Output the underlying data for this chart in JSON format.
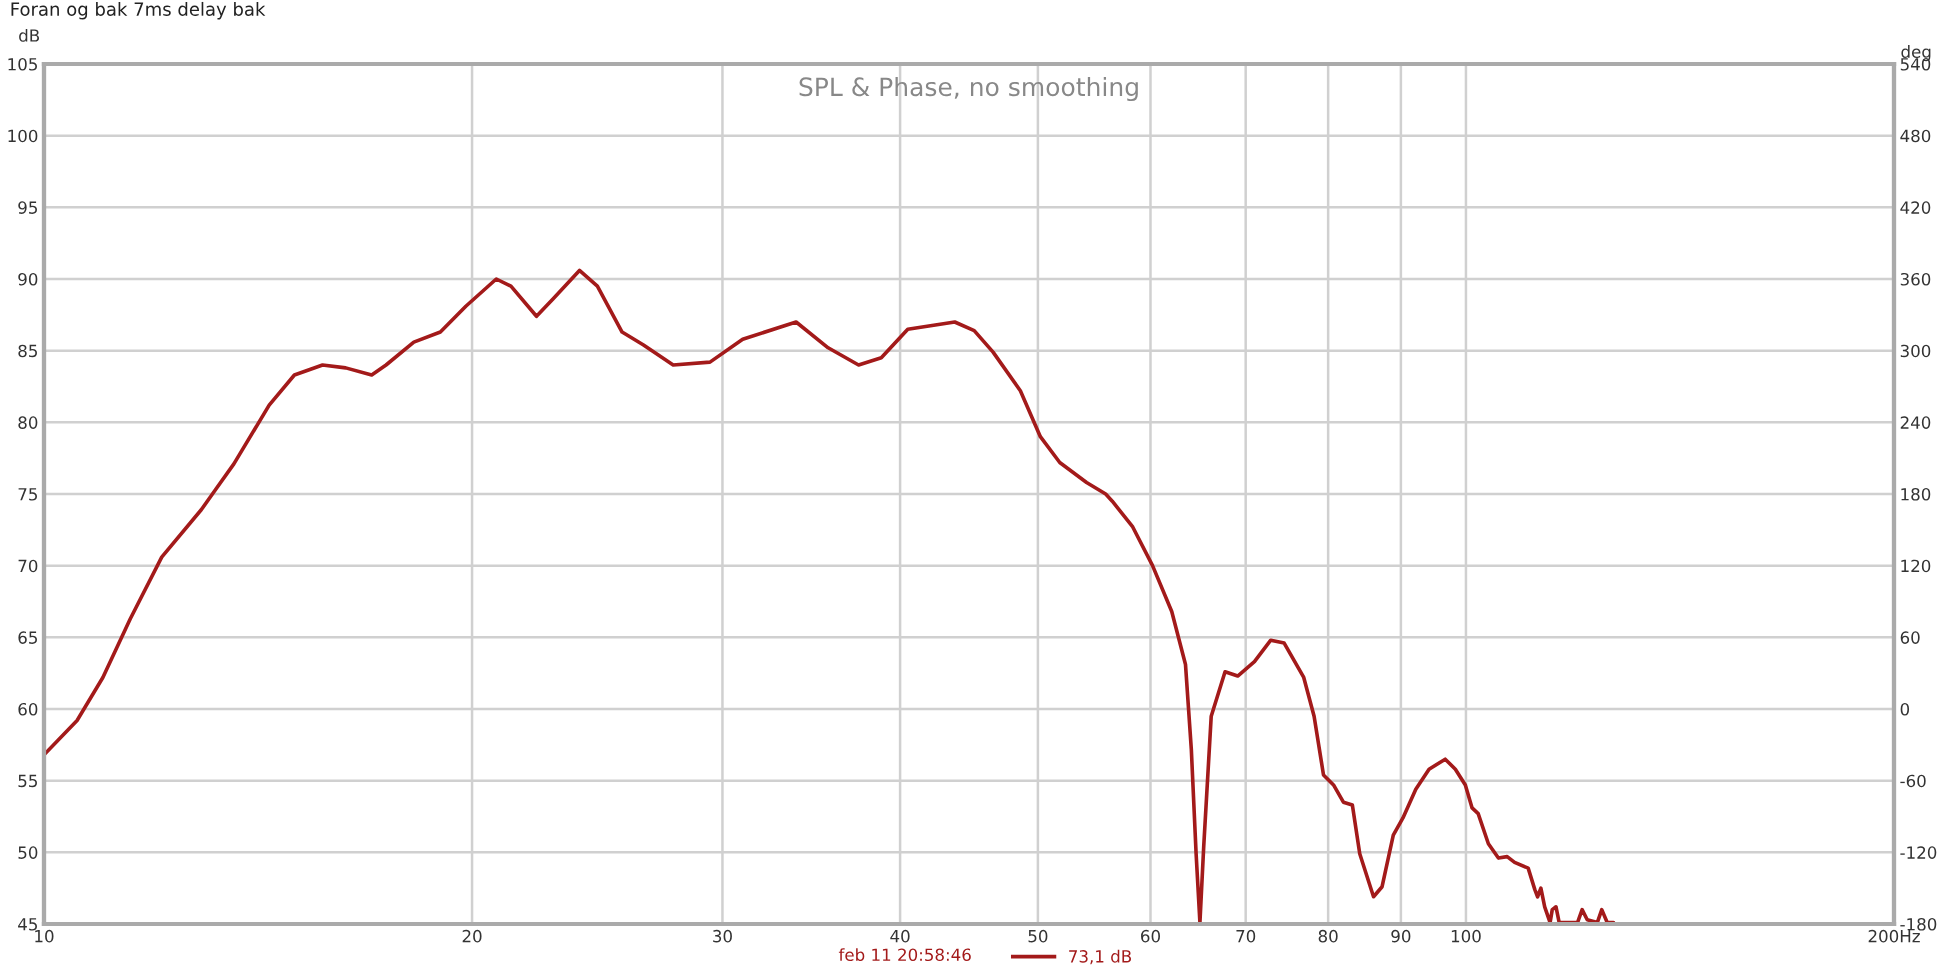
{
  "chart_data": {
    "type": "line",
    "title": "Foran og bak 7ms delay bak",
    "ylabel": "dB",
    "y2label": "deg",
    "annotations": [
      "SPL & Phase, no smoothing",
      "feb 11 20:58:46"
    ],
    "log": "x",
    "grid": true,
    "legend": "bottom",
    "marker": "none",
    "line_style": "solid",
    "xlim": [
      10,
      200
    ],
    "xticks": [
      10,
      20,
      30,
      40,
      50,
      60,
      70,
      80,
      90,
      100,
      {
        "value": 200,
        "label": "200Hz"
      }
    ],
    "ylim": [
      45,
      105
    ],
    "yticks": [
      45,
      50,
      55,
      60,
      65,
      70,
      75,
      80,
      85,
      90,
      95,
      100,
      105
    ],
    "y2lim": [
      -180,
      540
    ],
    "y2ticks": [
      -180,
      -120,
      -60,
      0,
      60,
      120,
      180,
      240,
      300,
      360,
      420,
      480,
      540
    ],
    "series": [
      {
        "name": "73,1 dB",
        "color": "#a31a1a",
        "x": [
          10.0,
          10.55,
          11.0,
          11.5,
          12.1,
          12.9,
          13.2,
          13.6,
          14.4,
          15.0,
          15.7,
          16.3,
          17.0,
          17.4,
          18.2,
          19.0,
          19.8,
          20.8,
          21.3,
          22.2,
          22.8,
          23.8,
          24.5,
          25.5,
          26.4,
          27.7,
          29.4,
          31.0,
          33.8,
          35.6,
          37.4,
          38.8,
          40.5,
          43.7,
          45.1,
          46.5,
          48.6,
          50.2,
          51.8,
          54.1,
          55.8,
          56.4,
          58.3,
          60.2,
          62.1,
          63.5,
          64.1,
          64.6,
          65.0,
          65.4,
          66.2,
          67.7,
          69.1,
          71.0,
          72.9,
          74.5,
          76.9,
          78.2,
          79.4,
          80.7,
          82.0,
          83.2,
          84.2,
          86.1,
          87.3,
          88.9,
          90.3,
          92.2,
          94.2,
          96.7,
          98.3,
          99.9,
          101,
          102,
          103.7,
          105.4,
          106.9,
          108.2,
          110.6,
          111.8,
          112.3,
          112.9,
          113.6,
          114.6,
          115.0,
          115.7,
          116.3,
          119.8,
          120.7,
          121.7,
          123.7,
          124.6,
          125.7,
          127.0
        ],
        "values": [
          56.8,
          59.2,
          62.2,
          66.3,
          70.6,
          73.9,
          75.3,
          77.1,
          81.2,
          83.3,
          84.0,
          83.8,
          83.3,
          84.0,
          85.6,
          86.3,
          88.1,
          90.0,
          89.5,
          87.4,
          88.6,
          90.6,
          89.5,
          86.3,
          85.4,
          84.0,
          84.2,
          85.8,
          87.0,
          85.2,
          84.0,
          84.5,
          86.5,
          87.0,
          86.4,
          84.9,
          82.2,
          79.0,
          77.2,
          75.8,
          75.0,
          74.5,
          72.7,
          70.0,
          66.8,
          63.1,
          57.2,
          49.9,
          45.1,
          50.4,
          59.5,
          62.6,
          62.3,
          63.3,
          64.8,
          64.6,
          62.2,
          59.5,
          55.4,
          54.7,
          53.5,
          53.3,
          49.9,
          46.9,
          47.6,
          51.2,
          52.4,
          54.4,
          55.8,
          56.5,
          55.8,
          54.7,
          53.1,
          52.7,
          50.6,
          49.6,
          49.7,
          49.3,
          48.9,
          47.4,
          46.9,
          47.5,
          46.2,
          45.1,
          46.0,
          46.2,
          45.1,
          45.1,
          46.0,
          45.3,
          45.1,
          46.0,
          45.1,
          45.1
        ]
      }
    ]
  }
}
